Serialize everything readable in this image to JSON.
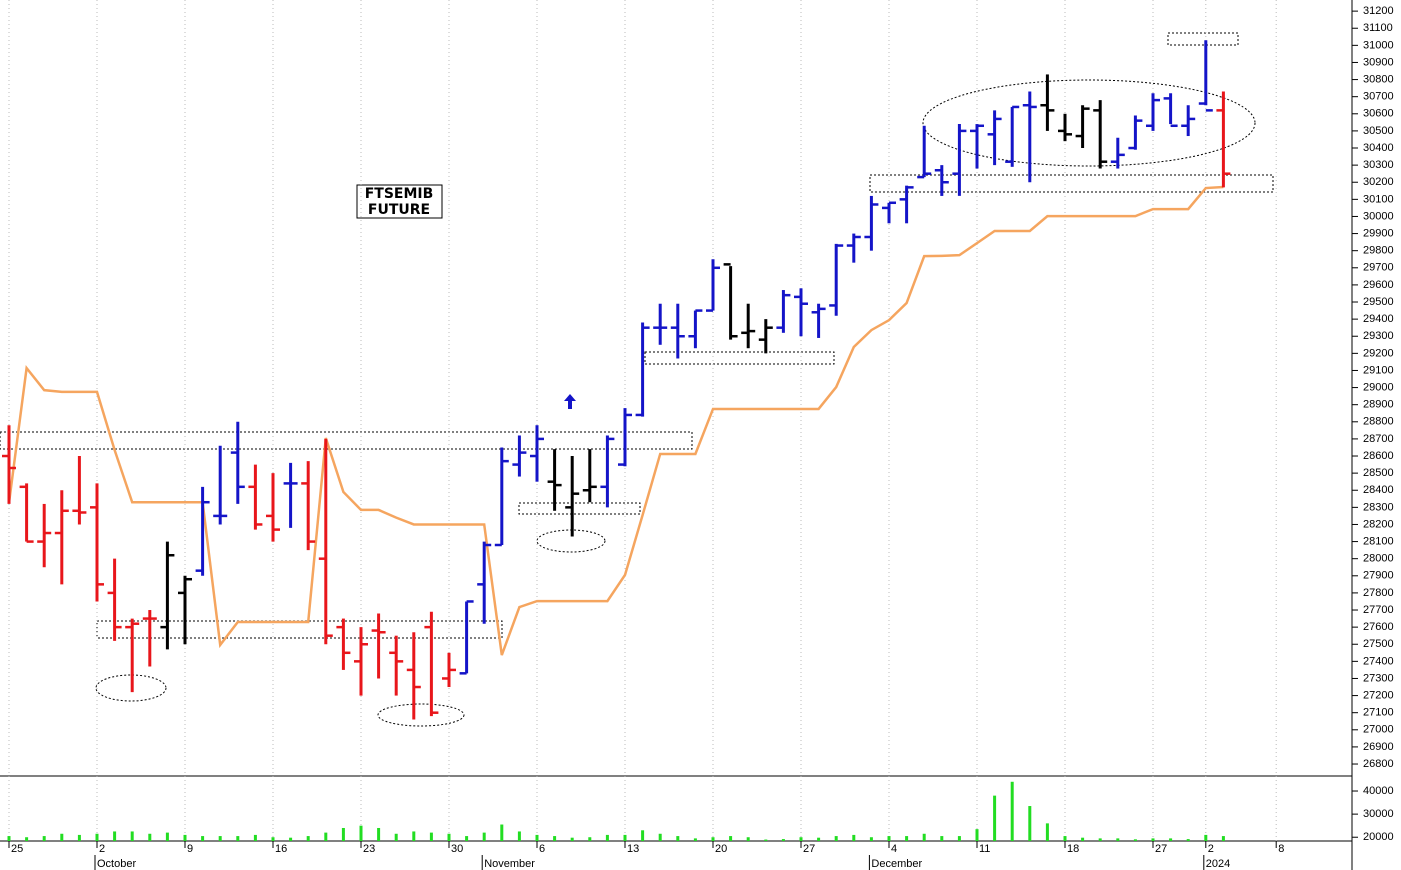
{
  "chart_data": {
    "type": "ohlc",
    "title_lines": [
      "FTSEMIB",
      "FUTURE"
    ],
    "categories": [
      "25",
      null,
      null,
      null,
      null,
      "2",
      null,
      null,
      null,
      null,
      "9",
      null,
      null,
      null,
      null,
      "16",
      null,
      null,
      null,
      null,
      "23",
      null,
      null,
      null,
      null,
      "30",
      null,
      null,
      null,
      null,
      "6",
      null,
      null,
      null,
      null,
      "13",
      null,
      null,
      null,
      null,
      "20",
      null,
      null,
      null,
      null,
      "27",
      null,
      null,
      null,
      null,
      "4",
      null,
      null,
      null,
      null,
      "11",
      null,
      null,
      null,
      null,
      "18",
      null,
      null,
      null,
      null,
      "27",
      null,
      null,
      "2",
      null,
      null,
      null,
      "8"
    ],
    "months": [
      null,
      null,
      null,
      null,
      null,
      "October",
      null,
      null,
      null,
      null,
      null,
      null,
      null,
      null,
      null,
      null,
      null,
      null,
      null,
      null,
      null,
      null,
      null,
      null,
      null,
      null,
      null,
      "November",
      null,
      null,
      null,
      null,
      null,
      null,
      null,
      null,
      null,
      null,
      null,
      null,
      null,
      null,
      null,
      null,
      null,
      null,
      null,
      null,
      null,
      "December",
      null,
      null,
      null,
      null,
      null,
      null,
      null,
      null,
      null,
      null,
      null,
      null,
      null,
      null,
      null,
      null,
      null,
      null,
      "2024",
      null,
      null,
      null,
      null
    ],
    "open": [
      28600,
      28420,
      28100,
      28150,
      28280,
      28300,
      27800,
      27600,
      27650,
      27600,
      27800,
      27930,
      28250,
      28620,
      28420,
      28250,
      28440,
      28440,
      28000,
      27600,
      27400,
      27580,
      27450,
      27350,
      27600,
      27300,
      27330,
      27850,
      28080,
      28550,
      28600,
      28450,
      28300,
      28400,
      28420,
      28550,
      28840,
      29350,
      29350,
      29300,
      29450,
      29720,
      29320,
      29280,
      29350,
      29530,
      29440,
      29480,
      29830,
      29880,
      30050,
      30100,
      30230,
      30270,
      30250,
      30500,
      30480,
      30320,
      30650,
      30650,
      30500,
      30470,
      30620,
      30320,
      30400,
      30530,
      30690,
      30530,
      30660,
      30620,
      null,
      null,
      null
    ],
    "high": [
      28780,
      28440,
      28320,
      28400,
      28600,
      28440,
      28000,
      27650,
      27700,
      28100,
      27900,
      28420,
      28660,
      28800,
      28550,
      28500,
      28560,
      28570,
      28700,
      27650,
      27600,
      27680,
      27550,
      27570,
      27690,
      27450,
      27750,
      28100,
      28650,
      28720,
      28780,
      28640,
      28600,
      28640,
      28720,
      28880,
      29380,
      29490,
      29490,
      29450,
      29750,
      29710,
      29490,
      29400,
      29570,
      29580,
      29490,
      29840,
      29900,
      30120,
      30080,
      30180,
      30530,
      30300,
      30540,
      30540,
      30620,
      30640,
      30730,
      30830,
      30600,
      30650,
      30680,
      30460,
      30590,
      30720,
      30720,
      30650,
      31030,
      30730,
      null,
      null,
      null
    ],
    "low": [
      28320,
      28100,
      27950,
      27850,
      28200,
      27750,
      27520,
      27220,
      27370,
      27470,
      27500,
      27900,
      28200,
      28320,
      28170,
      28100,
      28180,
      28050,
      27500,
      27350,
      27200,
      27300,
      27200,
      27060,
      27080,
      27250,
      27330,
      27620,
      28080,
      28480,
      28450,
      28280,
      28130,
      28330,
      28300,
      28540,
      28830,
      29250,
      29170,
      29230,
      29450,
      29280,
      29230,
      29200,
      29320,
      29300,
      29290,
      29420,
      29730,
      29800,
      29960,
      29960,
      30230,
      30120,
      30120,
      30280,
      30300,
      30290,
      30200,
      30500,
      30440,
      30400,
      30280,
      30280,
      30390,
      30500,
      30540,
      30470,
      30650,
      30170,
      null,
      null,
      null
    ],
    "close": [
      28530,
      28100,
      28150,
      28280,
      28270,
      27850,
      27600,
      27620,
      27650,
      28020,
      27880,
      28330,
      28250,
      28420,
      28200,
      28170,
      28440,
      28100,
      27550,
      27450,
      27500,
      27570,
      27400,
      27250,
      27100,
      27350,
      27750,
      28080,
      28570,
      28620,
      28700,
      28430,
      28380,
      28420,
      28700,
      28840,
      29350,
      29350,
      29300,
      29450,
      29700,
      29300,
      29330,
      29350,
      29540,
      29490,
      29460,
      29830,
      29880,
      30070,
      30080,
      30170,
      30250,
      30200,
      30500,
      30530,
      30570,
      30640,
      30640,
      30620,
      30480,
      30630,
      30320,
      30360,
      30560,
      30680,
      30530,
      30570,
      30620,
      30250,
      null,
      null,
      null
    ],
    "bar_colors": [
      "#e8161b",
      "#e8161b",
      "#e8161b",
      "#e8161b",
      "#e8161b",
      "#e8161b",
      "#e8161b",
      "#e8161b",
      "#e8161b",
      "#000000",
      "#000000",
      "#1414c8",
      "#1414c8",
      "#1414c8",
      "#e8161b",
      "#e8161b",
      "#1414c8",
      "#e8161b",
      "#e8161b",
      "#e8161b",
      "#e8161b",
      "#e8161b",
      "#e8161b",
      "#e8161b",
      "#e8161b",
      "#e8161b",
      "#1414c8",
      "#1414c8",
      "#1414c8",
      "#1414c8",
      "#1414c8",
      "#000000",
      "#000000",
      "#000000",
      "#1414c8",
      "#1414c8",
      "#1414c8",
      "#1414c8",
      "#1414c8",
      "#1414c8",
      "#1414c8",
      "#000000",
      "#000000",
      "#000000",
      "#1414c8",
      "#1414c8",
      "#1414c8",
      "#1414c8",
      "#1414c8",
      "#1414c8",
      "#1414c8",
      "#1414c8",
      "#1414c8",
      "#1414c8",
      "#1414c8",
      "#1414c8",
      "#1414c8",
      "#1414c8",
      "#1414c8",
      "#000000",
      "#000000",
      "#000000",
      "#000000",
      "#1414c8",
      "#1414c8",
      "#1414c8",
      "#1414c8",
      "#1414c8",
      "#1414c8",
      "#e8161b",
      null,
      null,
      null
    ],
    "stop_line": {
      "color": "#f5a55f",
      "values": [
        28326,
        29114,
        28985,
        28975,
        28975,
        28975,
        28635,
        28330,
        28330,
        28330,
        28330,
        28330,
        27496,
        27630,
        27630,
        27630,
        27630,
        27630,
        28705,
        28390,
        28285,
        28285,
        28240,
        28200,
        28200,
        28200,
        28200,
        28200,
        27437,
        27717,
        27752,
        27752,
        27752,
        27752,
        27752,
        27905,
        28255,
        28612,
        28612,
        28612,
        28875,
        28875,
        28875,
        28875,
        28875,
        28875,
        28875,
        29003,
        29237,
        29336,
        29394,
        29494,
        29768,
        29770,
        29774,
        29844,
        29915,
        29915,
        29915,
        30002,
        30002,
        30002,
        30002,
        30002,
        30002,
        30043,
        30043,
        30043,
        30166,
        30172,
        null,
        null,
        null
      ]
    },
    "ylim": [
      26730,
      31265
    ],
    "yticks": [
      26800,
      26900,
      27000,
      27100,
      27200,
      27300,
      27400,
      27500,
      27600,
      27700,
      27800,
      27900,
      28000,
      28100,
      28200,
      28300,
      28400,
      28500,
      28600,
      28700,
      28800,
      28900,
      29000,
      29100,
      29200,
      29300,
      29400,
      29500,
      29600,
      29700,
      29800,
      29900,
      30000,
      30100,
      30200,
      30300,
      30400,
      30500,
      30600,
      30700,
      30800,
      30900,
      31000,
      31100,
      31200
    ],
    "volume": {
      "color": "#22dd22",
      "values": [
        20500,
        20000,
        20500,
        21500,
        21000,
        21500,
        22500,
        22500,
        21500,
        22000,
        21000,
        20500,
        20500,
        20500,
        21000,
        20000,
        19800,
        20500,
        22000,
        24000,
        25000,
        24000,
        21500,
        22500,
        22000,
        21500,
        20500,
        22000,
        25500,
        22500,
        21000,
        20500,
        19800,
        20000,
        21000,
        21000,
        23000,
        21500,
        20500,
        19500,
        20000,
        20500,
        20000,
        19000,
        19200,
        20000,
        19800,
        20500,
        21000,
        20000,
        20500,
        20500,
        21500,
        20500,
        20500,
        23500,
        38000,
        44000,
        33500,
        26000,
        20500,
        19800,
        19500,
        19500,
        19100,
        19500,
        19500,
        19200,
        21000,
        20500,
        null,
        null,
        null
      ],
      "ylim": [
        18800,
        46500
      ],
      "yticks": [
        20000,
        30000,
        40000
      ]
    }
  }
}
